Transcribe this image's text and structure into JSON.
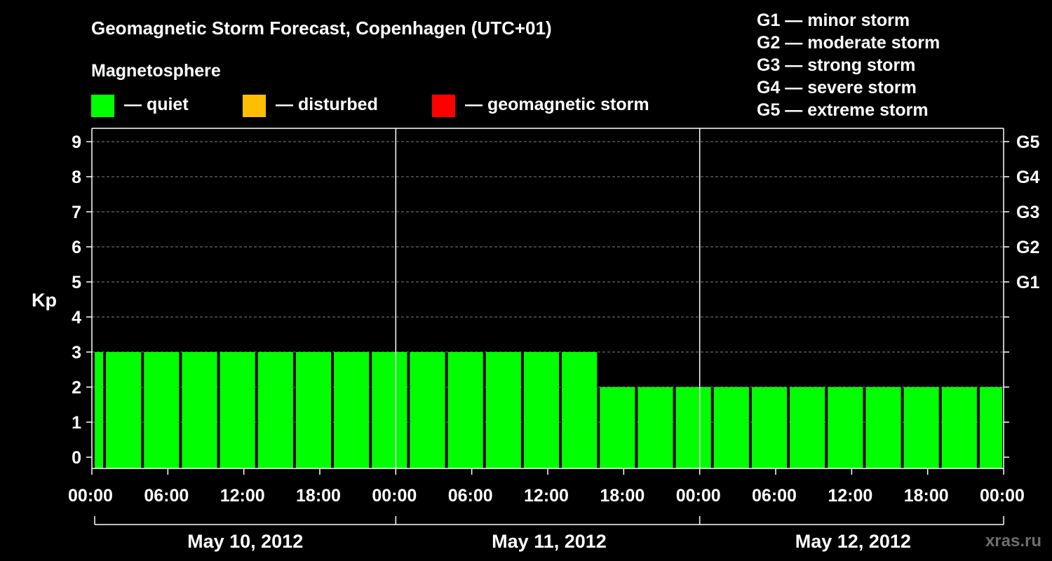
{
  "header": {
    "title": "Geomagnetic Storm Forecast, Copenhagen (UTC+01)",
    "section_label": "Magnetosphere"
  },
  "legend": [
    {
      "label": "— quiet",
      "color": "#00ff00"
    },
    {
      "label": "— disturbed",
      "color": "#ffbf00"
    },
    {
      "label": "— geomagnetic storm",
      "color": "#ff0000"
    }
  ],
  "storm_scale": [
    "G1 — minor storm",
    "G2 — moderate storm",
    "G3 — strong storm",
    "G4 — severe storm",
    "G5 — extreme storm"
  ],
  "watermark": "xras.ru",
  "colors": {
    "background": "#000000",
    "quiet": "#00ff00",
    "grid": "#808080",
    "axis": "#ffffff"
  },
  "chart_data": {
    "type": "bar",
    "ylabel": "Kp",
    "ylim": [
      0,
      9
    ],
    "y_ticks": [
      "0",
      "1",
      "2",
      "3",
      "4",
      "5",
      "6",
      "7",
      "8",
      "9"
    ],
    "right_ticks": [
      {
        "label": "G1",
        "kp": 5
      },
      {
        "label": "G2",
        "kp": 6
      },
      {
        "label": "G3",
        "kp": 7
      },
      {
        "label": "G4",
        "kp": 8
      },
      {
        "label": "G5",
        "kp": 9
      }
    ],
    "x_tick_labels": [
      "00:00",
      "06:00",
      "12:00",
      "18:00",
      "00:00",
      "06:00",
      "12:00",
      "18:00",
      "00:00",
      "06:00",
      "12:00",
      "18:00",
      "00:00"
    ],
    "dates": [
      "May 10, 2012",
      "May 11, 2012",
      "May 12, 2012"
    ],
    "x_range_hours": [
      0,
      72
    ],
    "bars": [
      {
        "start": 0,
        "end": 1,
        "kp": 3
      },
      {
        "start": 1,
        "end": 4,
        "kp": 3
      },
      {
        "start": 4,
        "end": 7,
        "kp": 3
      },
      {
        "start": 7,
        "end": 10,
        "kp": 3
      },
      {
        "start": 10,
        "end": 13,
        "kp": 3
      },
      {
        "start": 13,
        "end": 16,
        "kp": 3
      },
      {
        "start": 16,
        "end": 19,
        "kp": 3
      },
      {
        "start": 19,
        "end": 22,
        "kp": 3
      },
      {
        "start": 22,
        "end": 25,
        "kp": 3
      },
      {
        "start": 25,
        "end": 28,
        "kp": 3
      },
      {
        "start": 28,
        "end": 31,
        "kp": 3
      },
      {
        "start": 31,
        "end": 34,
        "kp": 3
      },
      {
        "start": 34,
        "end": 37,
        "kp": 3
      },
      {
        "start": 37,
        "end": 40,
        "kp": 3
      },
      {
        "start": 40,
        "end": 43,
        "kp": 2
      },
      {
        "start": 43,
        "end": 46,
        "kp": 2
      },
      {
        "start": 46,
        "end": 49,
        "kp": 2
      },
      {
        "start": 49,
        "end": 52,
        "kp": 2
      },
      {
        "start": 52,
        "end": 55,
        "kp": 2
      },
      {
        "start": 55,
        "end": 58,
        "kp": 2
      },
      {
        "start": 58,
        "end": 61,
        "kp": 2
      },
      {
        "start": 61,
        "end": 64,
        "kp": 2
      },
      {
        "start": 64,
        "end": 67,
        "kp": 2
      },
      {
        "start": 67,
        "end": 70,
        "kp": 2
      },
      {
        "start": 70,
        "end": 72,
        "kp": 2
      }
    ]
  }
}
